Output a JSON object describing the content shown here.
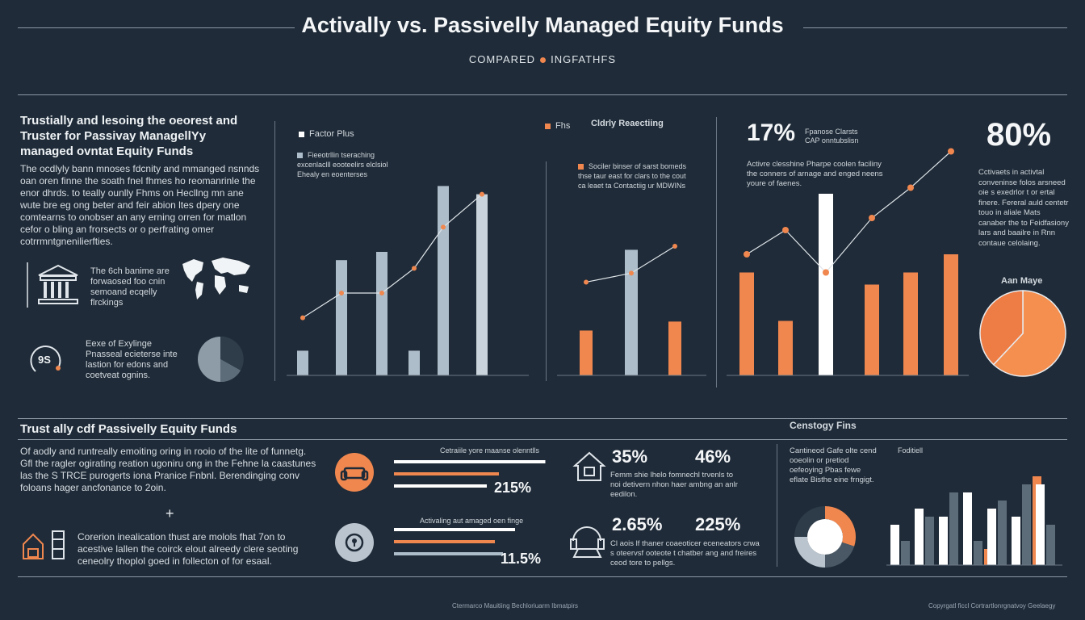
{
  "header": {
    "title": "Activally vs. Passivelly Managed Equity Funds",
    "subtitle_left": "COMPARED",
    "subtitle_right": "INGFATHFS"
  },
  "left_panel": {
    "heading": "Trustially and lesoing the oeorest and Truster for Passivay ManagellYy managed ovntat Equity Funds",
    "body": "The ocdlyly bann mnoses fdcnity and mmanged nsnnds oan oren finne the soath fnel fhmes ho reomanrinle the enor dhrds. to teally ounlly Fhms on Hecllng mn ane wute bre eg ong beter and feir abion ltes dpery one comtearns to onobser an any erning orren for matlon cefor o bling an frorsects or o perfrating omer cotrrmntgnenilierfties.",
    "bank_text": "The 6ch banime are forwaosed foo cnin semoand ecqelly flrckings",
    "globe_text": "Eexe of Exylinge Pnasseal ecieterse inte lastion for edons and coetveat ognins.",
    "globe_label": "9S"
  },
  "center_panel": {
    "legend": [
      {
        "label": "Factor Plus",
        "color": "#ffffff"
      },
      {
        "label": "Fhs",
        "color": "#f0874f"
      }
    ],
    "note": "Fieeotrllin tseraching excenlaclll eooteelirs elclsiol Ehealy en eoenterses",
    "right_heading": "Cldrly Reaectiing",
    "right_note": "Sociler binser of sarst bomeds thse taur east for clars to the cout ca leaet ta Contactiig ur MDWINs",
    "chart_a": {
      "series": [
        {
          "name": "Factor Plus",
          "values": [
            3,
            14,
            15,
            3,
            23,
            22
          ]
        },
        {
          "name": "Fhs",
          "values": [
            7,
            10,
            10,
            13,
            18,
            22
          ]
        }
      ],
      "color_bars": "#adbdc9",
      "color_line": "#f0874f"
    },
    "chart_b": {
      "series": [
        {
          "name": "Factor Plus",
          "values": [
            9,
            14
          ]
        },
        {
          "name": "Fhs",
          "values": [
            5,
            6
          ]
        }
      ],
      "line": [
        5,
        6,
        9
      ]
    }
  },
  "right_panel": {
    "pct_a": "17%",
    "pct_a_note": "Fpanose Clarsts CAP onntubslisn",
    "note_a": "Activre clesshine Pharpe coolen faciliny the conners of arnage and enged neens youre of faenes.",
    "pct_b": "80%",
    "note_b": "Cctivaets in activtal conveninse folos arsneed oie s exedrlor t or ertal finere. Fereral auld centetr touo in aliale Mats canaber the to Feidfasiony lars and baailre in Rnn contaue celolaing.",
    "pie_label": "Aan Maye",
    "pie": {
      "values": [
        62,
        38
      ],
      "colors": [
        "#f58f50",
        "#ee7d45"
      ]
    },
    "bars": {
      "values": [
        17,
        9,
        30,
        15,
        17,
        20
      ],
      "colors": [
        "#f0874f",
        "#f0874f",
        "#ffffff",
        "#f0874f",
        "#f0874f",
        "#f0874f"
      ]
    },
    "line": [
      20,
      24,
      17,
      26,
      31,
      37
    ]
  },
  "bottom_left": {
    "heading": "Trust ally cdf Passivelly Equity Funds",
    "body": "Of aodly and runtreally emoiting oring in rooio of the lite of funnetg. Gfl the ragler ogirating reation ugoniru ong in the Fehne la caastunes las the S TRCE purogerts iona Pranice Fnbnl. Berendinging conv foloans hager ancfonance to 2oin.",
    "plus": "+",
    "body2": "Corerion inealication thust are molols fhat 7on to acestive lallen the coirck elout alreedy clere seoting ceneolry thoplol goed in follecton of for esaal."
  },
  "bottom_center": {
    "label_a": "Cetraiile yore maanse olenntlls",
    "value_a": "215%",
    "label_b": "Activaling aut amaged oen finge",
    "value_b": "11.5%",
    "bars_a": [
      75,
      52,
      46
    ],
    "bars_b": [
      60,
      50,
      54
    ],
    "stat1": "35%",
    "stat2": "46%",
    "stat_note_1": "Femm shie lhelo fomnechl trvenls to noi detivern nhon haer ambng an anlr eedilon.",
    "stat3": "2.65%",
    "stat4": "225%",
    "stat_note_2": "Cl aois lf thaner coaeoticer eceneators crwa s oteervsf ooteote t chatber ang and freires ceod tore to pellgs."
  },
  "bottom_right": {
    "heading": "Censtogy Fins",
    "note": "Cantineod Gafe olte cend ooeolin or pretiod oefeoying Pbas fewe eflate Bisthe eine frngigt.",
    "chart_label": "Foditiell",
    "donut": {
      "values": [
        30,
        20,
        25,
        25
      ],
      "colors": [
        "#f0874f",
        "#4a5866",
        "#b9c4ce",
        "#2e3b48"
      ]
    },
    "bars": {
      "series": [
        {
          "name": "white",
          "values": [
            10,
            14,
            12,
            18,
            14,
            12,
            20
          ]
        },
        {
          "name": "grey",
          "values": [
            6,
            12,
            18,
            6,
            16,
            20,
            10
          ]
        },
        {
          "name": "orange",
          "values": [
            0,
            0,
            0,
            4,
            0,
            22,
            0
          ]
        }
      ]
    }
  },
  "footer": {
    "left": "Ctermarco Mauitiing Bechloriuarm Ibmatpirs",
    "right": "Copyrgatl ficcl Cortrartlonrgnatvoy Geelaegy"
  }
}
